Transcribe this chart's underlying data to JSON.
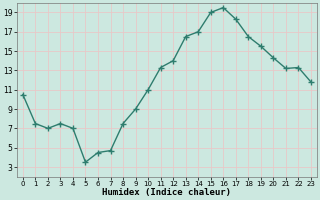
{
  "x": [
    0,
    1,
    2,
    3,
    4,
    5,
    6,
    7,
    8,
    9,
    10,
    11,
    12,
    13,
    14,
    15,
    16,
    17,
    18,
    19,
    20,
    21,
    22,
    23
  ],
  "y": [
    10.5,
    7.5,
    7.0,
    7.5,
    7.0,
    3.5,
    4.5,
    4.7,
    7.5,
    9.0,
    11.0,
    13.3,
    14.0,
    16.5,
    17.0,
    19.0,
    19.5,
    18.3,
    16.5,
    15.5,
    14.3,
    13.2,
    13.3,
    11.8
  ],
  "xlabel": "Humidex (Indice chaleur)",
  "ylim": [
    2,
    20
  ],
  "xlim": [
    -0.5,
    23.5
  ],
  "yticks": [
    3,
    5,
    7,
    9,
    11,
    13,
    15,
    17,
    19
  ],
  "xticks": [
    0,
    1,
    2,
    3,
    4,
    5,
    6,
    7,
    8,
    9,
    10,
    11,
    12,
    13,
    14,
    15,
    16,
    17,
    18,
    19,
    20,
    21,
    22,
    23
  ],
  "line_color": "#2e7d6e",
  "bg_color": "#cce8e0",
  "grid_color_h": "#e8c8c8",
  "grid_color_v": "#e8c8c8",
  "marker": "+",
  "marker_size": 4,
  "line_width": 1.0
}
